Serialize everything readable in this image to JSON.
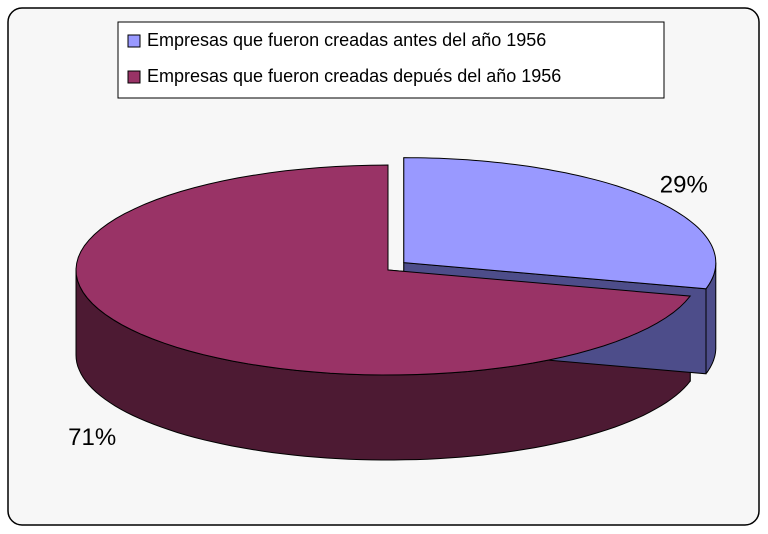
{
  "chart_data": {
    "type": "pie",
    "title": null,
    "categories": [
      "Empresas que fueron creadas antes del año 1956",
      "Empresas que fueron creadas depués del año 1956"
    ],
    "values": [
      29,
      71
    ],
    "value_labels": [
      "29%",
      "71%"
    ],
    "colors": [
      "#9999ff",
      "#993366"
    ],
    "side_colors": [
      "#4d4d8a",
      "#4d1a33"
    ],
    "exploded": [
      true,
      false
    ],
    "legend": "top"
  }
}
